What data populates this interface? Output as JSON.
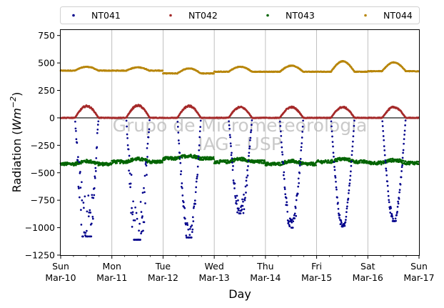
{
  "watermark": [
    "Grupo de Micrometeorologia",
    "IAG - USP"
  ],
  "chart_data": {
    "type": "scatter",
    "xlabel": "Day",
    "ylabel": "Radiation (Wm^-2)",
    "ylabel_parts": {
      "main": "Radiation (",
      "italic": "Wm",
      "sup": "−2",
      "end": ")"
    },
    "ylim": [
      -1250,
      800
    ],
    "yticks": [
      -1250,
      -1000,
      -750,
      -500,
      -250,
      0,
      250,
      500,
      750
    ],
    "xlim": [
      "2024-03-10",
      "2024-03-17"
    ],
    "xticks": [
      {
        "day": 0,
        "weekday": "Sun",
        "date": "Mar-10"
      },
      {
        "day": 1,
        "weekday": "Mon",
        "date": "Mar-11"
      },
      {
        "day": 2,
        "weekday": "Tue",
        "date": "Mar-12"
      },
      {
        "day": 3,
        "weekday": "Wed",
        "date": "Mar-13"
      },
      {
        "day": 4,
        "weekday": "Thu",
        "date": "Mar-14"
      },
      {
        "day": 5,
        "weekday": "Fri",
        "date": "Mar-15"
      },
      {
        "day": 6,
        "weekday": "Sat",
        "date": "Mar-16"
      },
      {
        "day": 7,
        "weekday": "Sun",
        "date": "Mar-17"
      }
    ],
    "grid": "vertical",
    "legend": {
      "position": "top",
      "columns": 4
    },
    "series": [
      {
        "name": "NT041",
        "color": "#00008b",
        "daily_min": [
          -1080,
          -1110,
          -1090,
          -870,
          -1000,
          -990,
          -940
        ],
        "daytime_variability": [
          0.35,
          0.3,
          0.1,
          0.12,
          0.08,
          0.03,
          0.05
        ]
      },
      {
        "name": "NT042",
        "color": "#a52a2a",
        "daily_max": [
          110,
          115,
          110,
          100,
          100,
          100,
          100
        ],
        "night_value": 0
      },
      {
        "name": "NT043",
        "color": "#006400",
        "baseline": [
          -420,
          -400,
          -370,
          -400,
          -420,
          -400,
          -410
        ],
        "noise": 15
      },
      {
        "name": "NT044",
        "color": "#b8860b",
        "baseline": [
          430,
          430,
          405,
          420,
          420,
          420,
          425
        ],
        "day_bump": [
          35,
          30,
          45,
          45,
          55,
          95,
          80
        ]
      }
    ]
  }
}
